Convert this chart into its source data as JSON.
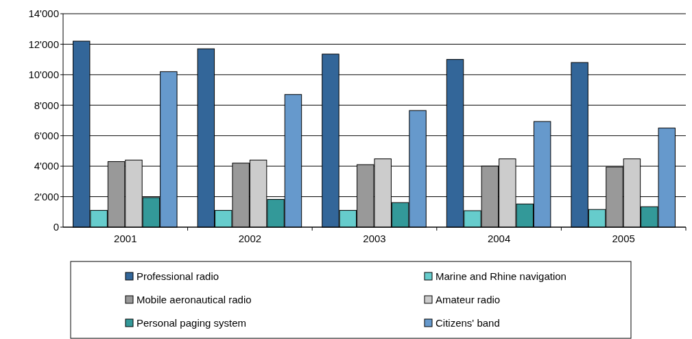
{
  "chart_data": {
    "type": "bar",
    "categories": [
      "2001",
      "2002",
      "2003",
      "2004",
      "2005"
    ],
    "series": [
      {
        "name": "Professional radio",
        "color": "#336699",
        "values": [
          12200,
          11700,
          11350,
          11000,
          10800
        ]
      },
      {
        "name": "Marine and Rhine navigation",
        "color": "#66cccc",
        "values": [
          1100,
          1100,
          1100,
          1080,
          1160
        ]
      },
      {
        "name": "Mobile aeronautical radio",
        "color": "#999999",
        "values": [
          4300,
          4200,
          4100,
          4000,
          3950
        ]
      },
      {
        "name": "Amateur radio",
        "color": "#cccccc",
        "values": [
          4400,
          4400,
          4480,
          4480,
          4480
        ]
      },
      {
        "name": "Personal paging system",
        "color": "#339999",
        "values": [
          1940,
          1820,
          1610,
          1520,
          1340
        ]
      },
      {
        "name": "Citizens' band",
        "color": "#6699cc",
        "values": [
          10200,
          8700,
          7650,
          6930,
          6500
        ]
      }
    ],
    "ylim": [
      0,
      14000
    ],
    "yticks": [
      {
        "value": 0,
        "label": "0"
      },
      {
        "value": 2000,
        "label": "2'000"
      },
      {
        "value": 4000,
        "label": "4'000"
      },
      {
        "value": 6000,
        "label": "6'000"
      },
      {
        "value": 8000,
        "label": "8'000"
      },
      {
        "value": 10000,
        "label": "10'000"
      },
      {
        "value": 12000,
        "label": "12'000"
      },
      {
        "value": 14000,
        "label": "14'000"
      }
    ],
    "grid": "y",
    "legend": "bottom"
  }
}
